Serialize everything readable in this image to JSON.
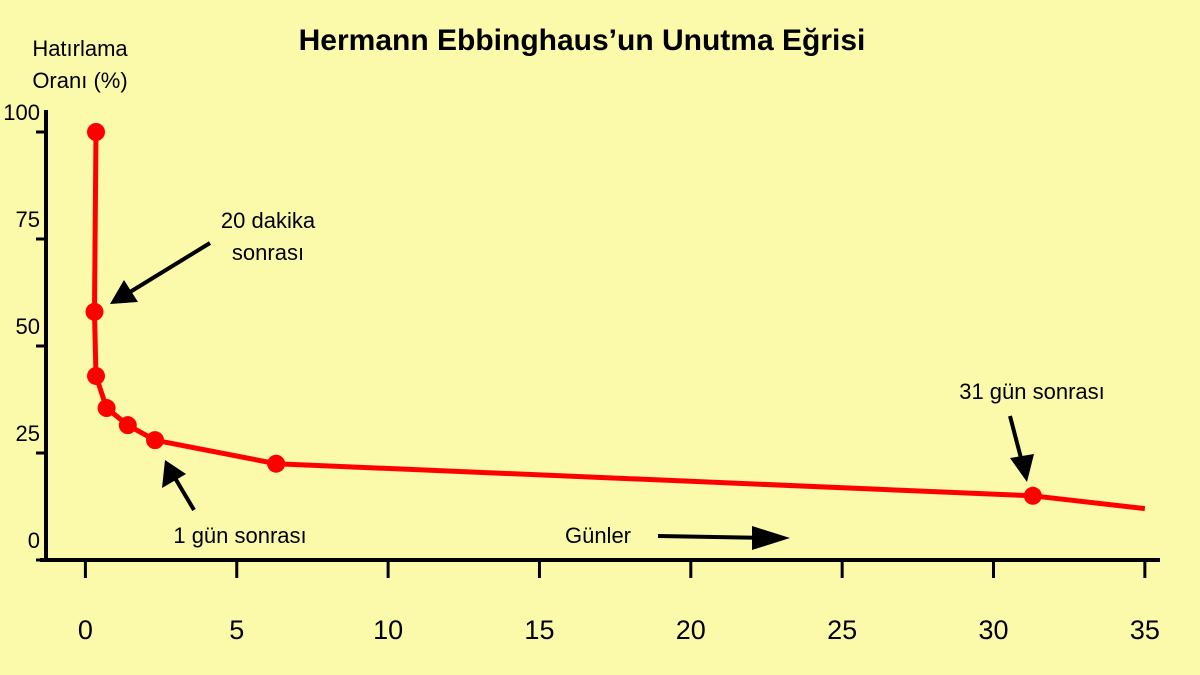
{
  "chart_data": {
    "type": "line",
    "title": "Hermann Ebbinghaus’un Unutma Eğrisi",
    "y_label": [
      "Hatırlama",
      "Oranı (%)"
    ],
    "x_label": "Günler",
    "x": [
      0.35,
      0.3,
      0.35,
      0.7,
      1.4,
      2.3,
      6.3,
      31.3,
      35
    ],
    "series": [
      {
        "color": "#ff0000",
        "values": [
          100,
          58,
          43,
          35.5,
          31.5,
          28,
          22.5,
          15,
          12
        ],
        "markers": [
          true,
          true,
          true,
          true,
          true,
          true,
          true,
          true,
          false
        ]
      }
    ],
    "xlim": [
      -1.5,
      35.5
    ],
    "ylim": [
      0,
      100
    ],
    "xticks": [
      0,
      5,
      10,
      15,
      20,
      25,
      30,
      35
    ],
    "yticks": [
      0,
      25,
      50,
      75,
      100
    ],
    "annotations": [
      {
        "text": [
          "20 dakika",
          "sonrası"
        ]
      },
      {
        "text": [
          "1 gün sonrası"
        ]
      },
      {
        "text": [
          "31 gün sonrası"
        ]
      }
    ]
  }
}
